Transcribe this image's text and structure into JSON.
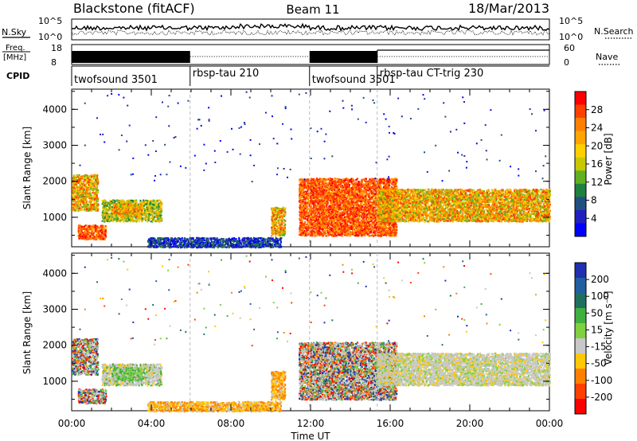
{
  "header": {
    "station": "Blackstone (fitACF)",
    "beam": "Beam 11",
    "date": "18/Mar/2013"
  },
  "noise_panel": {
    "left_label": "N.Sky",
    "right_label": "N.Search",
    "left_ticks": [
      "10^5",
      "10^0"
    ],
    "right_ticks": [
      "10^5",
      "10^0"
    ]
  },
  "freq_panel": {
    "left_label_1": "Freq.",
    "left_label_2": "[MHz]",
    "left_ticks": [
      "18",
      "8"
    ],
    "right_label": "Nave",
    "right_ticks": [
      "60",
      "0"
    ]
  },
  "cpid_panel": {
    "label": "CPID",
    "segments": [
      {
        "name": "twofsound 3501",
        "start_h": 0.0,
        "end_h": 5.95
      },
      {
        "name": "rbsp-tau 210",
        "start_h": 5.95,
        "end_h": 11.95
      },
      {
        "name": "twofsound 3501",
        "start_h": 11.95,
        "end_h": 15.35
      },
      {
        "name": "rbsp-tau CT-trig 230",
        "start_h": 15.35,
        "end_h": 24.0
      }
    ]
  },
  "x_axis": {
    "label": "Time UT",
    "ticks": [
      "00:00",
      "04:00",
      "08:00",
      "12:00",
      "16:00",
      "20:00",
      "00:00"
    ],
    "range_h": [
      0,
      24
    ]
  },
  "y_axis": {
    "label": "Slant Range [km]",
    "ticks": [
      "1000",
      "2000",
      "3000",
      "4000"
    ],
    "range_km": [
      180,
      4560
    ]
  },
  "power_scale": {
    "label": "Power [dB]",
    "ticks": [
      "28",
      "24",
      "20",
      "16",
      "12",
      "8",
      "4"
    ],
    "colors": [
      "#ff0000",
      "#ff4000",
      "#ff8000",
      "#ffa500",
      "#ffd000",
      "#c8c800",
      "#60b020",
      "#208040",
      "#205080",
      "#2020c0",
      "#0000ff"
    ]
  },
  "velocity_scale": {
    "label": "Velocity [m s⁻¹]",
    "ticks": [
      "200",
      "100",
      "50",
      "15",
      "-15",
      "-50",
      "-100",
      "-200"
    ],
    "colors": [
      "#2030b0",
      "#2060a0",
      "#207060",
      "#40b040",
      "#80d040",
      "#c8c8c8",
      "#ffc800",
      "#ff8000",
      "#ff4000",
      "#ff0000"
    ]
  },
  "chart_data": {
    "type": "heatmap",
    "panels": [
      "power",
      "velocity"
    ],
    "scatter_regions": [
      {
        "t0": 0.0,
        "t1": 1.3,
        "r0": 1200,
        "r1": 2200,
        "power": "high",
        "velocity": "mixed"
      },
      {
        "t0": 0.3,
        "t1": 1.7,
        "r0": 400,
        "r1": 800,
        "power": "highest",
        "velocity": "mixed"
      },
      {
        "t0": 1.5,
        "t1": 4.5,
        "r0": 900,
        "r1": 1500,
        "power": "medium",
        "velocity": "low-negative"
      },
      {
        "t0": 2.0,
        "t1": 3.5,
        "r0": 1050,
        "r1": 1400,
        "power": "high",
        "velocity": "positive"
      },
      {
        "t0": 3.8,
        "t1": 10.5,
        "r0": 180,
        "r1": 450,
        "power": "low",
        "velocity": "negative"
      },
      {
        "t0": 10.0,
        "t1": 10.7,
        "r0": 500,
        "r1": 1300,
        "power": "high",
        "velocity": "negative"
      },
      {
        "t0": 11.4,
        "t1": 16.3,
        "r0": 500,
        "r1": 2100,
        "power": "highest",
        "velocity": "mixed"
      },
      {
        "t0": 15.3,
        "t1": 24.0,
        "r0": 900,
        "r1": 1800,
        "power": "high",
        "velocity": "near-zero"
      }
    ]
  }
}
